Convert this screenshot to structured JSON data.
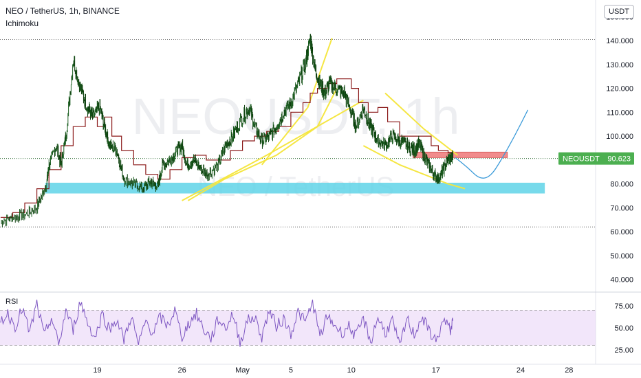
{
  "header": {
    "symbol_line": "NEO / TetherUS, 1h, BINANCE",
    "indicator_name": "Ichimoku",
    "unit_badge": "USDT"
  },
  "watermark": {
    "symbol": "NEOUSDT, 1h",
    "pair": "NEO / TetherUS"
  },
  "rsi": {
    "label": "RSI",
    "upper_band": 70,
    "lower_band": 30,
    "ticks": [
      "75.00",
      "50.00",
      "25.00"
    ]
  },
  "price_tag": {
    "label": "NEOUSDT",
    "value": "90.623",
    "color": "#4caf50"
  },
  "colors": {
    "price_up": "#1b5e20",
    "price_dn": "#0b3d0b",
    "base_line": "#8b1a1a",
    "pattern_lines": "#f5e642",
    "support_zone": "#5fd3e8",
    "resistance_zone": "#f08080",
    "projection": "#3a9ad9",
    "rsi_line": "#7e57c2",
    "rsi_band": "#e9d5f7"
  },
  "chart_data": {
    "type": "line",
    "title": "NEO / TetherUS, 1h, BINANCE",
    "x_ticks": [
      {
        "label": "19",
        "day": 19
      },
      {
        "label": "26",
        "day": 26
      },
      {
        "label": "May",
        "day": 31
      },
      {
        "label": "5",
        "day": 35
      },
      {
        "label": "10",
        "day": 40
      },
      {
        "label": "17",
        "day": 47
      },
      {
        "label": "24",
        "day": 54
      },
      {
        "label": "28",
        "day": 58
      }
    ],
    "y_ticks": [
      "150.000",
      "140.000",
      "130.000",
      "120.000",
      "110.000",
      "100.000",
      "90.000",
      "80.000",
      "70.000",
      "60.000",
      "50.000",
      "40.000"
    ],
    "ylim": [
      35,
      157
    ],
    "xlim": [
      10.95,
      60.2
    ],
    "price_series": {
      "name": "NEOUSDT",
      "x": [
        11,
        12,
        13,
        14,
        14.8,
        15,
        15.6,
        16.0,
        16.4,
        17.0,
        17.6,
        18.2,
        18.6,
        19.2,
        19.6,
        20.0,
        20.6,
        21.2,
        22.0,
        22.8,
        23.4,
        24.0,
        24.4,
        25.0,
        25.6,
        26.0,
        26.4,
        27.0,
        27.6,
        28.2,
        29.0,
        29.6,
        30.2,
        31.0,
        31.6,
        32.0,
        32.6,
        33.2,
        33.8,
        34.4,
        35.0,
        35.6,
        36.2,
        36.6,
        37.0,
        37.4,
        37.8,
        38.2,
        38.8,
        39.4,
        40.0,
        40.4,
        41.0,
        41.4,
        41.8,
        42.2,
        42.8,
        43.4,
        44.0,
        44.6,
        45.2,
        45.6,
        46.0,
        46.4,
        46.8,
        47.2,
        47.6,
        48.0,
        48.4
      ],
      "y": [
        64,
        66,
        67,
        70,
        80,
        88,
        96,
        88,
        100,
        132,
        120,
        112,
        108,
        112,
        104,
        96,
        94,
        82,
        80,
        78,
        81,
        79,
        88,
        90,
        94,
        96,
        88,
        90,
        86,
        84,
        88,
        96,
        100,
        108,
        112,
        104,
        98,
        100,
        104,
        110,
        114,
        122,
        130,
        141,
        128,
        122,
        118,
        122,
        120,
        118,
        110,
        104,
        112,
        106,
        102,
        98,
        96,
        100,
        98,
        96,
        94,
        97,
        92,
        88,
        84,
        82,
        86,
        90,
        91
      ]
    },
    "base_line_series": {
      "x": [
        11,
        12,
        13,
        14,
        15,
        16,
        17,
        18,
        19,
        19.6,
        20.2,
        21.0,
        22.0,
        23.0,
        24.0,
        25.0,
        26.0,
        27.0,
        28.0,
        29.0,
        30.0,
        31.0,
        32.0,
        33.0,
        34.0,
        35.0,
        36.0,
        36.6,
        37.2,
        38.0,
        38.8,
        39.4,
        40.0,
        40.6,
        41.4,
        42.2,
        43.0,
        44.0,
        45.0,
        46.0,
        46.6,
        47.2,
        48.0,
        48.4
      ],
      "y": [
        66,
        68,
        72,
        78,
        86,
        96,
        104,
        108,
        104,
        108,
        100,
        94,
        88,
        84,
        82,
        86,
        91,
        92,
        90,
        90,
        94,
        98,
        100,
        102,
        104,
        110,
        114,
        118,
        120,
        122,
        124,
        124,
        120,
        114,
        110,
        112,
        106,
        100,
        100,
        100,
        96,
        94,
        93,
        91
      ]
    },
    "pattern_lines": [
      {
        "name": "broadening-upper",
        "x": [
          32.6,
          36.4,
          38.4
        ],
        "y": [
          88,
          112,
          141
        ]
      },
      {
        "name": "broadening-lower",
        "x": [
          26.5,
          29.5,
          33.8,
          37.2,
          38.8
        ],
        "y": [
          73,
          82,
          92,
          104,
          120
        ]
      },
      {
        "name": "wedge-upper",
        "x": [
          42.8,
          46.0,
          48.8
        ],
        "y": [
          118,
          103,
          92
        ]
      },
      {
        "name": "wedge-lower",
        "x": [
          41.0,
          44.0,
          48.0,
          49.4
        ],
        "y": [
          96,
          88,
          80,
          78
        ]
      },
      {
        "name": "trend-lower",
        "x": [
          26.0,
          33.0,
          41.0
        ],
        "y": [
          73,
          92,
          115
        ]
      }
    ],
    "zones": [
      {
        "name": "support",
        "x0": 14.7,
        "x1": 56.0,
        "y0": 76,
        "y1": 80.5
      },
      {
        "name": "resistance",
        "x0": 45.1,
        "x1": 52.9,
        "y0": 91,
        "y1": 93.3
      }
    ],
    "projection": {
      "x": [
        48.6,
        49.6,
        50.6,
        51.5,
        52.4,
        53.5,
        54.6
      ],
      "y": [
        91,
        87,
        82,
        83,
        90,
        100,
        111
      ]
    },
    "guide_lines": [
      140.5,
      62
    ],
    "rsi_series": {
      "x": [
        11,
        11.6,
        12.2,
        12.8,
        13.4,
        14.0,
        14.6,
        15.2,
        15.8,
        16.4,
        17.0,
        17.6,
        18.2,
        18.8,
        19.4,
        20.0,
        20.6,
        21.2,
        21.8,
        22.4,
        23.0,
        23.6,
        24.2,
        24.8,
        25.4,
        26.0,
        26.6,
        27.2,
        27.8,
        28.4,
        29.0,
        29.6,
        30.2,
        30.8,
        31.4,
        32.0,
        32.6,
        33.2,
        33.8,
        34.4,
        35.0,
        35.6,
        36.2,
        36.8,
        37.4,
        38.0,
        38.6,
        39.2,
        39.8,
        40.4,
        41.0,
        41.6,
        42.2,
        42.8,
        43.4,
        44.0,
        44.6,
        45.2,
        45.8,
        46.4,
        47.0,
        47.6,
        48.2,
        48.4
      ],
      "y": [
        58,
        66,
        52,
        72,
        44,
        78,
        40,
        62,
        30,
        70,
        48,
        80,
        56,
        38,
        66,
        48,
        60,
        36,
        64,
        30,
        58,
        44,
        62,
        52,
        70,
        40,
        56,
        66,
        48,
        38,
        60,
        50,
        66,
        34,
        58,
        62,
        40,
        70,
        52,
        60,
        44,
        68,
        56,
        80,
        40,
        62,
        54,
        44,
        52,
        40,
        60,
        34,
        62,
        44,
        58,
        28,
        60,
        42,
        62,
        48,
        34,
        58,
        48,
        58
      ]
    }
  }
}
